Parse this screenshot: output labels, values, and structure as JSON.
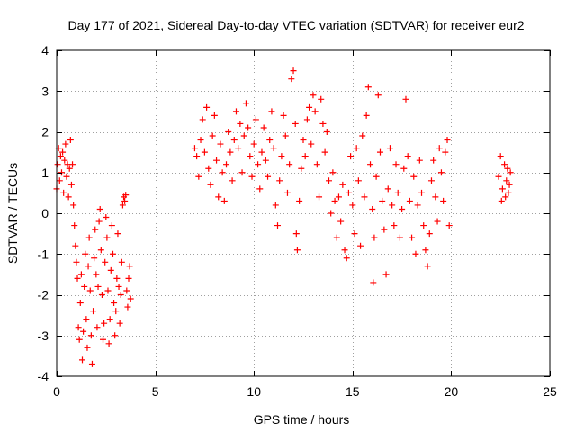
{
  "chart_data": {
    "type": "scatter",
    "title": "Day 177 of 2021, Sidereal Day-to-day VTEC variation (SDTVAR) for receiver eur2",
    "xlabel": "GPS time / hours",
    "ylabel": "SDTVAR / TECUs",
    "xlim": [
      0,
      25
    ],
    "ylim": [
      -4,
      4
    ],
    "xticks": [
      0,
      5,
      10,
      15,
      20,
      25
    ],
    "yticks": [
      -4,
      -3,
      -2,
      -1,
      0,
      1,
      2,
      3,
      4
    ],
    "grid": true,
    "marker": "+",
    "color": "#ff0000",
    "series": [
      {
        "name": "SDTVAR",
        "points": [
          [
            0.0,
            0.6
          ],
          [
            0.05,
            1.2
          ],
          [
            0.1,
            1.6
          ],
          [
            0.15,
            0.8
          ],
          [
            0.2,
            1.4
          ],
          [
            0.25,
            1.0
          ],
          [
            0.3,
            1.5
          ],
          [
            0.35,
            0.5
          ],
          [
            0.4,
            1.3
          ],
          [
            0.45,
            1.7
          ],
          [
            0.5,
            0.9
          ],
          [
            0.55,
            1.2
          ],
          [
            0.6,
            0.4
          ],
          [
            0.65,
            1.1
          ],
          [
            0.7,
            1.8
          ],
          [
            0.75,
            0.7
          ],
          [
            0.8,
            1.2
          ],
          [
            0.85,
            0.2
          ],
          [
            0.9,
            -0.3
          ],
          [
            0.95,
            -0.8
          ],
          [
            1.0,
            -1.2
          ],
          [
            1.05,
            -1.6
          ],
          [
            1.1,
            -2.8
          ],
          [
            1.15,
            -3.1
          ],
          [
            1.2,
            -2.2
          ],
          [
            1.25,
            -1.5
          ],
          [
            1.3,
            -3.6
          ],
          [
            1.35,
            -2.9
          ],
          [
            1.4,
            -1.8
          ],
          [
            1.45,
            -1.0
          ],
          [
            1.5,
            -2.6
          ],
          [
            1.55,
            -3.3
          ],
          [
            1.6,
            -1.3
          ],
          [
            1.65,
            -0.6
          ],
          [
            1.7,
            -1.9
          ],
          [
            1.75,
            -3.0
          ],
          [
            1.8,
            -3.7
          ],
          [
            1.85,
            -2.4
          ],
          [
            1.9,
            -1.1
          ],
          [
            1.95,
            -0.4
          ],
          [
            2.0,
            -1.5
          ],
          [
            2.05,
            -2.8
          ],
          [
            2.1,
            -1.8
          ],
          [
            2.15,
            -0.2
          ],
          [
            2.2,
            0.1
          ],
          [
            2.25,
            -0.9
          ],
          [
            2.3,
            -2.0
          ],
          [
            2.35,
            -3.1
          ],
          [
            2.4,
            -2.7
          ],
          [
            2.45,
            -1.2
          ],
          [
            2.5,
            -0.1
          ],
          [
            2.55,
            -0.6
          ],
          [
            2.6,
            -1.9
          ],
          [
            2.65,
            -3.2
          ],
          [
            2.7,
            -2.6
          ],
          [
            2.75,
            -1.4
          ],
          [
            2.8,
            -0.3
          ],
          [
            2.85,
            -1.0
          ],
          [
            2.9,
            -2.2
          ],
          [
            2.95,
            -3.0
          ],
          [
            3.0,
            -2.4
          ],
          [
            3.05,
            -1.6
          ],
          [
            3.1,
            -0.5
          ],
          [
            3.15,
            -1.8
          ],
          [
            3.2,
            -2.7
          ],
          [
            3.25,
            -2.0
          ],
          [
            3.3,
            -1.2
          ],
          [
            3.35,
            0.2
          ],
          [
            3.4,
            0.4
          ],
          [
            3.45,
            0.3
          ],
          [
            3.5,
            0.45
          ],
          [
            3.55,
            -1.9
          ],
          [
            3.6,
            -2.3
          ],
          [
            3.65,
            -1.6
          ],
          [
            3.7,
            -1.3
          ],
          [
            3.75,
            -2.1
          ],
          [
            7.0,
            1.6
          ],
          [
            7.1,
            1.4
          ],
          [
            7.2,
            0.9
          ],
          [
            7.3,
            1.8
          ],
          [
            7.4,
            2.3
          ],
          [
            7.5,
            1.5
          ],
          [
            7.6,
            2.6
          ],
          [
            7.7,
            1.1
          ],
          [
            7.8,
            0.7
          ],
          [
            7.9,
            1.9
          ],
          [
            8.0,
            2.4
          ],
          [
            8.1,
            1.3
          ],
          [
            8.2,
            0.4
          ],
          [
            8.3,
            1.7
          ],
          [
            8.4,
            1.0
          ],
          [
            8.5,
            0.3
          ],
          [
            8.6,
            1.2
          ],
          [
            8.7,
            2.0
          ],
          [
            8.8,
            1.5
          ],
          [
            8.9,
            0.8
          ],
          [
            9.0,
            1.8
          ],
          [
            9.1,
            2.5
          ],
          [
            9.2,
            1.6
          ],
          [
            9.3,
            2.2
          ],
          [
            9.4,
            1.0
          ],
          [
            9.5,
            1.9
          ],
          [
            9.6,
            2.7
          ],
          [
            9.7,
            2.1
          ],
          [
            9.8,
            1.4
          ],
          [
            9.9,
            0.9
          ],
          [
            10.0,
            1.7
          ],
          [
            10.1,
            2.3
          ],
          [
            10.2,
            1.2
          ],
          [
            10.3,
            0.6
          ],
          [
            10.4,
            1.5
          ],
          [
            10.5,
            2.1
          ],
          [
            10.6,
            1.3
          ],
          [
            10.7,
            0.9
          ],
          [
            10.8,
            1.8
          ],
          [
            10.9,
            2.5
          ],
          [
            11.0,
            1.6
          ],
          [
            11.1,
            0.2
          ],
          [
            11.2,
            -0.3
          ],
          [
            11.3,
            0.8
          ],
          [
            11.4,
            1.4
          ],
          [
            11.5,
            2.4
          ],
          [
            11.6,
            1.9
          ],
          [
            11.7,
            0.5
          ],
          [
            11.8,
            1.2
          ],
          [
            11.9,
            3.3
          ],
          [
            12.0,
            3.5
          ],
          [
            12.1,
            2.2
          ],
          [
            12.15,
            -0.5
          ],
          [
            12.2,
            -0.9
          ],
          [
            12.3,
            0.3
          ],
          [
            12.4,
            1.1
          ],
          [
            12.5,
            1.8
          ],
          [
            12.6,
            1.4
          ],
          [
            12.7,
            2.3
          ],
          [
            12.8,
            2.6
          ],
          [
            12.9,
            1.7
          ],
          [
            13.0,
            2.9
          ],
          [
            13.1,
            2.5
          ],
          [
            13.2,
            1.2
          ],
          [
            13.3,
            0.4
          ],
          [
            13.4,
            2.8
          ],
          [
            13.5,
            2.2
          ],
          [
            13.6,
            1.5
          ],
          [
            13.7,
            2.0
          ],
          [
            13.8,
            0.8
          ],
          [
            13.9,
            0.0
          ],
          [
            14.0,
            1.0
          ],
          [
            14.1,
            0.3
          ],
          [
            14.2,
            -0.6
          ],
          [
            14.3,
            0.4
          ],
          [
            14.4,
            -0.2
          ],
          [
            14.5,
            0.7
          ],
          [
            14.6,
            -0.9
          ],
          [
            14.7,
            -1.1
          ],
          [
            14.8,
            0.5
          ],
          [
            14.9,
            1.4
          ],
          [
            15.0,
            0.2
          ],
          [
            15.1,
            -0.5
          ],
          [
            15.2,
            1.6
          ],
          [
            15.3,
            0.8
          ],
          [
            15.4,
            -0.8
          ],
          [
            15.5,
            1.9
          ],
          [
            15.6,
            0.4
          ],
          [
            15.7,
            2.4
          ],
          [
            15.8,
            3.1
          ],
          [
            15.9,
            1.2
          ],
          [
            16.0,
            0.1
          ],
          [
            16.05,
            -1.7
          ],
          [
            16.1,
            -0.6
          ],
          [
            16.2,
            0.9
          ],
          [
            16.3,
            2.9
          ],
          [
            16.4,
            1.5
          ],
          [
            16.5,
            0.3
          ],
          [
            16.6,
            -0.4
          ],
          [
            16.7,
            -1.5
          ],
          [
            16.8,
            0.6
          ],
          [
            16.9,
            1.6
          ],
          [
            17.0,
            0.2
          ],
          [
            17.1,
            -0.3
          ],
          [
            17.2,
            1.2
          ],
          [
            17.3,
            0.5
          ],
          [
            17.4,
            -0.6
          ],
          [
            17.5,
            0.1
          ],
          [
            17.6,
            1.1
          ],
          [
            17.7,
            2.8
          ],
          [
            17.8,
            1.4
          ],
          [
            17.9,
            0.3
          ],
          [
            18.0,
            -0.6
          ],
          [
            18.1,
            0.9
          ],
          [
            18.2,
            -1.0
          ],
          [
            18.3,
            0.2
          ],
          [
            18.4,
            1.3
          ],
          [
            18.5,
            0.5
          ],
          [
            18.6,
            -0.3
          ],
          [
            18.7,
            -0.9
          ],
          [
            18.8,
            -1.3
          ],
          [
            18.9,
            -0.5
          ],
          [
            19.0,
            0.8
          ],
          [
            19.1,
            1.3
          ],
          [
            19.2,
            0.4
          ],
          [
            19.3,
            -0.2
          ],
          [
            19.4,
            1.6
          ],
          [
            19.5,
            1.0
          ],
          [
            19.6,
            0.3
          ],
          [
            19.7,
            1.5
          ],
          [
            19.8,
            1.8
          ],
          [
            19.9,
            -0.3
          ],
          [
            22.4,
            0.9
          ],
          [
            22.5,
            1.4
          ],
          [
            22.55,
            0.3
          ],
          [
            22.6,
            0.6
          ],
          [
            22.7,
            1.2
          ],
          [
            22.75,
            0.4
          ],
          [
            22.8,
            0.8
          ],
          [
            22.85,
            1.1
          ],
          [
            22.9,
            0.5
          ],
          [
            22.95,
            0.7
          ],
          [
            23.0,
            1.0
          ]
        ]
      }
    ]
  }
}
